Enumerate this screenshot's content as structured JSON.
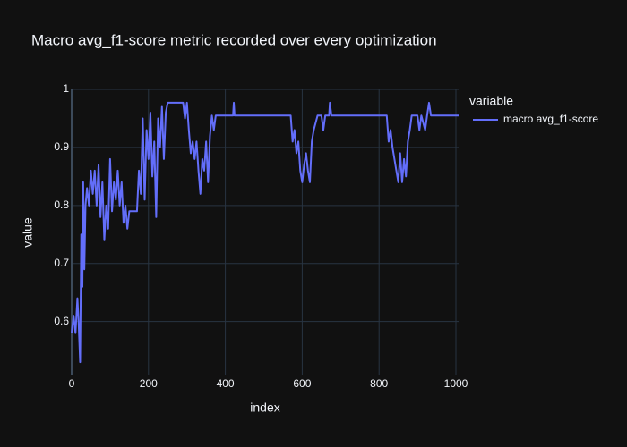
{
  "chart_data": {
    "type": "line",
    "title": "Macro avg_f1-score metric recorded over every optimization",
    "x_label": "index",
    "y_label": "value",
    "legend_title": "variable",
    "x": [
      0,
      5,
      10,
      15,
      18,
      22,
      25,
      28,
      30,
      33,
      36,
      40,
      45,
      50,
      55,
      60,
      65,
      70,
      75,
      80,
      85,
      90,
      95,
      100,
      105,
      110,
      115,
      120,
      125,
      130,
      135,
      140,
      145,
      150,
      160,
      170,
      175,
      180,
      185,
      190,
      195,
      200,
      205,
      210,
      215,
      220,
      225,
      230,
      235,
      240,
      245,
      250,
      260,
      270,
      280,
      290,
      295,
      300,
      305,
      310,
      315,
      320,
      325,
      330,
      335,
      340,
      345,
      350,
      355,
      360,
      365,
      370,
      375,
      420,
      422,
      424,
      570,
      575,
      580,
      585,
      590,
      595,
      600,
      605,
      610,
      615,
      620,
      625,
      630,
      640,
      650,
      655,
      660,
      670,
      672,
      676,
      820,
      825,
      830,
      835,
      840,
      845,
      850,
      855,
      860,
      865,
      870,
      875,
      880,
      885,
      900,
      905,
      910,
      920,
      925,
      930,
      935,
      1007
    ],
    "series": [
      {
        "name": "macro avg_f1-score",
        "color": "#636efa",
        "values": [
          0.58,
          0.61,
          0.58,
          0.64,
          0.6,
          0.53,
          0.75,
          0.66,
          0.84,
          0.69,
          0.8,
          0.83,
          0.8,
          0.86,
          0.82,
          0.86,
          0.8,
          0.87,
          0.78,
          0.84,
          0.74,
          0.8,
          0.76,
          0.88,
          0.79,
          0.84,
          0.81,
          0.86,
          0.8,
          0.84,
          0.77,
          0.8,
          0.76,
          0.79,
          0.79,
          0.79,
          0.86,
          0.82,
          0.95,
          0.81,
          0.93,
          0.88,
          0.96,
          0.85,
          0.91,
          0.78,
          0.95,
          0.9,
          0.97,
          0.88,
          0.96,
          0.977,
          0.977,
          0.977,
          0.977,
          0.977,
          0.95,
          0.977,
          0.93,
          0.89,
          0.91,
          0.88,
          0.91,
          0.86,
          0.82,
          0.88,
          0.86,
          0.91,
          0.84,
          0.92,
          0.955,
          0.93,
          0.955,
          0.955,
          0.977,
          0.955,
          0.955,
          0.91,
          0.93,
          0.89,
          0.91,
          0.86,
          0.84,
          0.87,
          0.89,
          0.86,
          0.84,
          0.91,
          0.93,
          0.955,
          0.955,
          0.93,
          0.955,
          0.955,
          0.977,
          0.955,
          0.955,
          0.91,
          0.93,
          0.9,
          0.88,
          0.86,
          0.84,
          0.89,
          0.84,
          0.88,
          0.85,
          0.91,
          0.93,
          0.955,
          0.955,
          0.93,
          0.955,
          0.93,
          0.955,
          0.977,
          0.955,
          0.955
        ]
      }
    ],
    "xlim": [
      0,
      1007
    ],
    "ylim": [
      0.507,
      1.0
    ],
    "xticks": [
      0,
      200,
      400,
      600,
      800,
      1000
    ],
    "yticks": [
      0.6,
      0.7,
      0.8,
      0.9,
      1
    ],
    "grid": true,
    "legend_position": "right"
  }
}
